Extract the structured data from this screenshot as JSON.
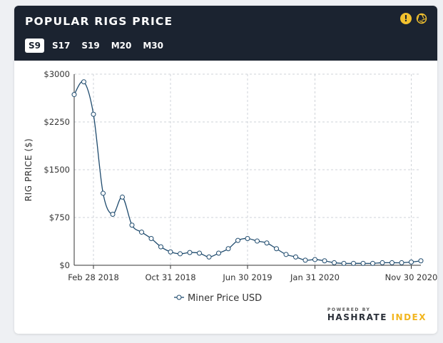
{
  "header": {
    "title": "POPULAR RIGS PRICE",
    "tabs": [
      "S9",
      "S17",
      "S19",
      "M20",
      "M30"
    ],
    "active_tab": "S9",
    "warn_symbol": "!"
  },
  "brand": {
    "powered_by": "POWERED BY",
    "name": "HASHRATE",
    "accent": "INDEX"
  },
  "colors": {
    "header_bg": "#1b2330",
    "line": "#1f4b6e",
    "accent": "#f2b51d"
  },
  "chart_data": {
    "type": "line",
    "title": "",
    "ylabel": "RIG PRICE ($)",
    "xlabel": "",
    "ylim": [
      0,
      3000
    ],
    "yticks": [
      0,
      750,
      1500,
      2250,
      3000
    ],
    "ytick_labels": [
      "$0",
      "$750",
      "$1500",
      "$2250",
      "$3000"
    ],
    "xtick_labels": [
      "Feb 28 2018",
      "Oct 31 2018",
      "Jun 30 2019",
      "Jan 31 2020",
      "Nov 30 2020"
    ],
    "xtick_index": [
      2,
      10,
      18,
      25,
      35
    ],
    "grid": true,
    "legend_position": "bottom",
    "series": [
      {
        "name": "Miner Price USD",
        "values": [
          2680,
          2880,
          2370,
          1130,
          800,
          1070,
          630,
          520,
          420,
          290,
          210,
          180,
          200,
          190,
          130,
          190,
          260,
          390,
          420,
          380,
          350,
          260,
          170,
          130,
          80,
          90,
          70,
          40,
          30,
          30,
          30,
          30,
          40,
          40,
          40,
          50,
          70
        ]
      }
    ]
  }
}
